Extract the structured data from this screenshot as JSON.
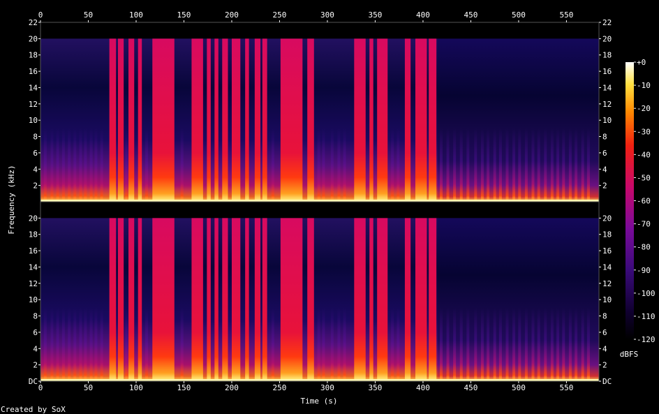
{
  "chart_data": {
    "type": "heatmap",
    "subtype": "spectrogram",
    "xlabel": "Time (s)",
    "ylabel": "Frequency (kHz)",
    "xlim": [
      0,
      584
    ],
    "ylim": [
      0,
      22
    ],
    "x_ticks": [
      0,
      50,
      100,
      150,
      200,
      250,
      300,
      350,
      400,
      450,
      500,
      550
    ],
    "y_ticks_top": [
      "22",
      "20",
      "18",
      "16",
      "14",
      "12",
      "10",
      "8",
      "6",
      "4",
      "2"
    ],
    "y_ticks_bottom": [
      "20",
      "18",
      "16",
      "14",
      "12",
      "10",
      "8",
      "6",
      "4",
      "2",
      "DC"
    ],
    "channels": 2,
    "colorbar": {
      "label": "dBFS",
      "range": [
        -120,
        0
      ],
      "ticks": [
        "+0",
        "-10",
        "-20",
        "-30",
        "-40",
        "-50",
        "-60",
        "-70",
        "-80",
        "-90",
        "-100",
        "-110",
        "-120"
      ]
    },
    "loud_segments_s": [
      [
        72,
        79
      ],
      [
        81,
        87
      ],
      [
        92,
        98
      ],
      [
        102,
        106
      ],
      [
        117,
        140
      ],
      [
        158,
        170
      ],
      [
        174,
        178
      ],
      [
        182,
        186
      ],
      [
        190,
        196
      ],
      [
        200,
        209
      ],
      [
        214,
        218
      ],
      [
        224,
        230
      ],
      [
        232,
        237
      ],
      [
        251,
        274
      ],
      [
        279,
        286
      ],
      [
        328,
        340
      ],
      [
        344,
        348
      ],
      [
        352,
        363
      ],
      [
        381,
        387
      ],
      [
        392,
        404
      ],
      [
        406,
        414
      ]
    ],
    "speech_bursts_s": [
      5,
      12,
      18,
      24,
      30,
      36,
      42,
      47,
      53,
      58,
      64,
      90,
      111,
      148,
      243,
      291,
      296,
      305,
      312,
      318,
      368,
      374,
      419,
      426,
      433,
      440,
      447,
      455,
      462,
      468,
      475,
      481,
      488,
      495,
      501,
      508,
      515,
      521,
      528,
      535,
      541,
      547,
      554,
      560,
      567,
      573
    ],
    "content_end_s": 584,
    "band_limit_khz": 20
  },
  "footer": {
    "credit": "Created by SoX"
  }
}
